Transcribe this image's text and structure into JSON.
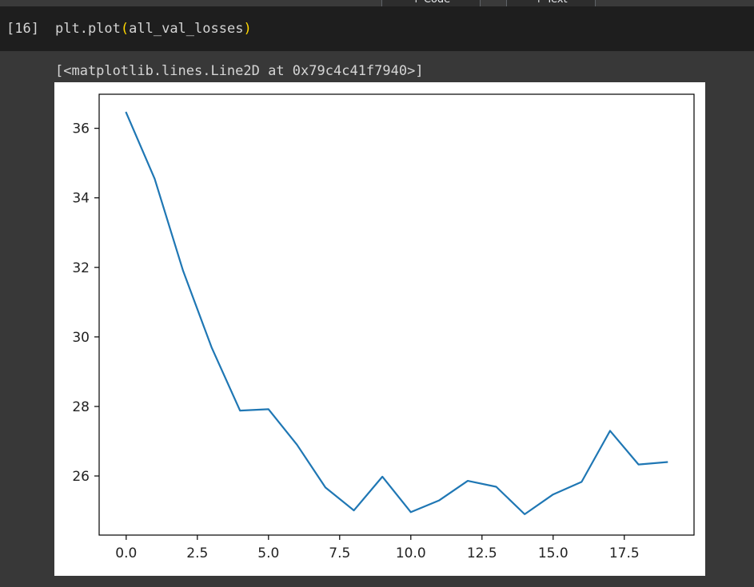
{
  "toolbar": {
    "add_code_label": "+ Code",
    "add_text_label": "+ Text"
  },
  "cell": {
    "execution_count": "[16]",
    "code_prefix": "plt.plot",
    "code_open_paren": "(",
    "code_arg": "all_val_losses",
    "code_close_paren": ")"
  },
  "output": {
    "repr_text": "[<matplotlib.lines.Line2D at 0x79c4c41f7940>]"
  },
  "chart_data": {
    "type": "line",
    "title": "",
    "xlabel": "",
    "ylabel": "",
    "xlim": [
      -0.95,
      19.95
    ],
    "ylim": [
      24.3,
      36.98
    ],
    "x_ticks": [
      0.0,
      2.5,
      5.0,
      7.5,
      10.0,
      12.5,
      15.0,
      17.5
    ],
    "x_tick_labels": [
      "0.0",
      "2.5",
      "5.0",
      "7.5",
      "10.0",
      "12.5",
      "15.0",
      "17.5"
    ],
    "y_ticks": [
      26,
      28,
      30,
      32,
      34,
      36
    ],
    "y_tick_labels": [
      "26",
      "28",
      "30",
      "32",
      "34",
      "36"
    ],
    "grid": false,
    "legend": "none",
    "line_color": "#1f77b4",
    "series": [
      {
        "x": [
          0,
          1,
          2,
          3,
          4,
          5,
          6,
          7,
          8,
          9,
          10,
          11,
          12,
          13,
          14,
          15,
          16,
          17,
          18,
          19
        ],
        "values": [
          36.45,
          34.55,
          31.9,
          29.7,
          27.88,
          27.92,
          26.9,
          25.67,
          25.01,
          25.98,
          24.96,
          25.3,
          25.86,
          25.69,
          24.9,
          25.47,
          25.83,
          27.3,
          26.33,
          26.4
        ]
      }
    ]
  }
}
